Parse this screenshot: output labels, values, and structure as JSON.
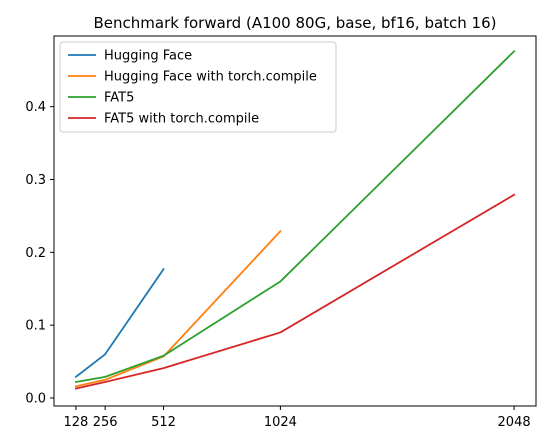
{
  "chart_data": {
    "type": "line",
    "title": "Benchmark forward (A100 80G, base, bf16, batch 16)",
    "xlabel": "",
    "ylabel": "",
    "x_ticks": [
      128,
      256,
      512,
      1024,
      2048
    ],
    "y_ticks": [
      0.0,
      0.1,
      0.2,
      0.3,
      0.4
    ],
    "xlim": [
      32,
      2144
    ],
    "ylim": [
      -0.011,
      0.497
    ],
    "grid": false,
    "legend_position": "top-left",
    "series": [
      {
        "name": "Hugging Face",
        "color": "#1f77b4",
        "x": [
          128,
          256,
          512
        ],
        "values": [
          0.029,
          0.06,
          0.177
        ]
      },
      {
        "name": "Hugging Face with torch.compile",
        "color": "#ff7f0e",
        "x": [
          128,
          256,
          512,
          1024
        ],
        "values": [
          0.016,
          0.025,
          0.057,
          0.229
        ]
      },
      {
        "name": "FAT5",
        "color": "#2ca02c",
        "x": [
          128,
          256,
          512,
          1024,
          2048
        ],
        "values": [
          0.022,
          0.029,
          0.058,
          0.16,
          0.476
        ]
      },
      {
        "name": "FAT5 with torch.compile",
        "color": "#d62728",
        "x": [
          128,
          256,
          512,
          1024,
          2048
        ],
        "values": [
          0.013,
          0.022,
          0.041,
          0.09,
          0.279
        ]
      }
    ]
  }
}
